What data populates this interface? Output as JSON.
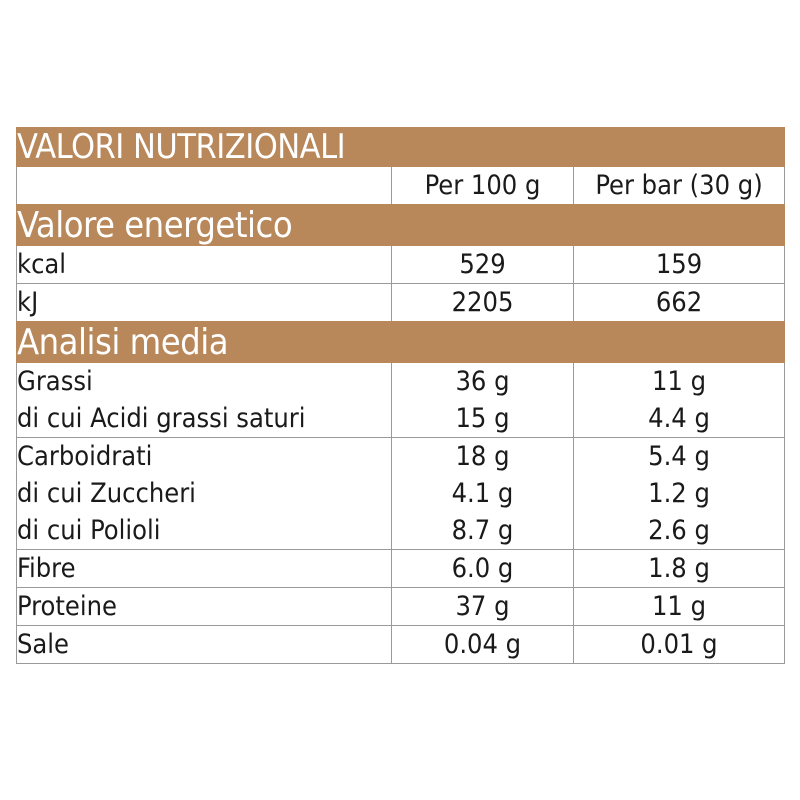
{
  "table": {
    "title": "VALORI NUTRIZIONALI",
    "columns": {
      "per_100": "Per 100 g",
      "per_bar": "Per bar (30 g)"
    },
    "sections": [
      {
        "heading": "Valore energetico",
        "rows": [
          {
            "name": "kcal",
            "per_100": "529",
            "per_bar": "159"
          },
          {
            "name": "kJ",
            "per_100": "2205",
            "per_bar": "662"
          }
        ]
      },
      {
        "heading": "Analisi media",
        "rows": [
          {
            "name": "Grassi",
            "per_100": "36 g",
            "per_bar": "11 g"
          },
          {
            "name": "di cui Acidi grassi saturi",
            "per_100": "15 g",
            "per_bar": "4.4 g"
          },
          {
            "name": "Carboidrati",
            "per_100": "18 g",
            "per_bar": "5.4 g"
          },
          {
            "name": "di cui Zuccheri",
            "per_100": "4.1 g",
            "per_bar": "1.2 g"
          },
          {
            "name": "di cui Polioli",
            "per_100": "8.7 g",
            "per_bar": "2.6 g"
          },
          {
            "name": "Fibre",
            "per_100": "6.0 g",
            "per_bar": "1.8 g"
          },
          {
            "name": "Proteine",
            "per_100": "37 g",
            "per_bar": "11 g"
          },
          {
            "name": "Sale",
            "per_100": "0.04 g",
            "per_bar": "0.01 g"
          }
        ]
      }
    ],
    "colors": {
      "band": "#b8875a",
      "band_text": "#ffffff",
      "grid": "#9a9a9a"
    }
  }
}
